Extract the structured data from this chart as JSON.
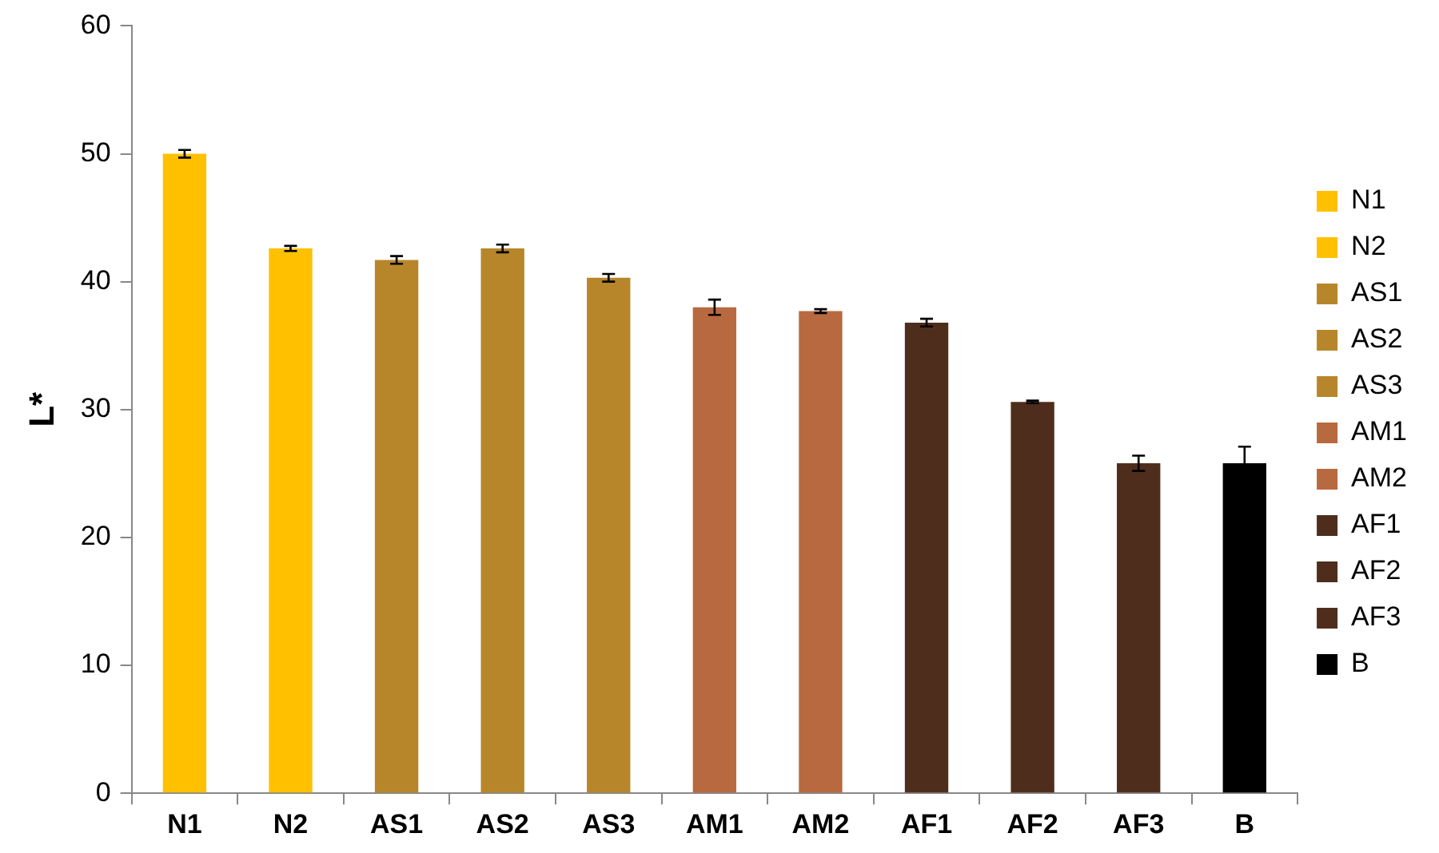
{
  "chart_data": {
    "type": "bar",
    "ylabel": "L*",
    "stacked": true,
    "categories": [
      "N1",
      "N2",
      "AS1",
      "AS2",
      "AS3",
      "AM1",
      "AM2",
      "AF1",
      "AF2",
      "AF3",
      "B"
    ],
    "series": [
      {
        "name": "N1",
        "color": "#ffc000",
        "values": [
          50.0,
          null,
          null,
          null,
          null,
          null,
          null,
          null,
          null,
          null,
          null
        ],
        "errors": [
          0.3,
          null,
          null,
          null,
          null,
          null,
          null,
          null,
          null,
          null,
          null
        ]
      },
      {
        "name": "N2",
        "color": "#ffc000",
        "values": [
          null,
          42.6,
          null,
          null,
          null,
          null,
          null,
          null,
          null,
          null,
          null
        ],
        "errors": [
          null,
          0.2,
          null,
          null,
          null,
          null,
          null,
          null,
          null,
          null,
          null
        ]
      },
      {
        "name": "AS1",
        "color": "#b8862a",
        "values": [
          null,
          null,
          41.7,
          null,
          null,
          null,
          null,
          null,
          null,
          null,
          null
        ],
        "errors": [
          null,
          null,
          0.3,
          null,
          null,
          null,
          null,
          null,
          null,
          null,
          null
        ]
      },
      {
        "name": "AS2",
        "color": "#b8862a",
        "values": [
          null,
          null,
          null,
          42.6,
          null,
          null,
          null,
          null,
          null,
          null,
          null
        ],
        "errors": [
          null,
          null,
          null,
          0.3,
          null,
          null,
          null,
          null,
          null,
          null,
          null
        ]
      },
      {
        "name": "AS3",
        "color": "#b8862a",
        "values": [
          null,
          null,
          null,
          null,
          40.3,
          null,
          null,
          null,
          null,
          null,
          null
        ],
        "errors": [
          null,
          null,
          null,
          null,
          0.3,
          null,
          null,
          null,
          null,
          null,
          null
        ]
      },
      {
        "name": "AM1",
        "color": "#b9693f",
        "values": [
          null,
          null,
          null,
          null,
          null,
          38.0,
          null,
          null,
          null,
          null,
          null
        ],
        "errors": [
          null,
          null,
          null,
          null,
          null,
          0.6,
          null,
          null,
          null,
          null,
          null
        ]
      },
      {
        "name": "AM2",
        "color": "#b9693f",
        "values": [
          null,
          null,
          null,
          null,
          null,
          null,
          37.7,
          null,
          null,
          null,
          null
        ],
        "errors": [
          null,
          null,
          null,
          null,
          null,
          null,
          0.15,
          null,
          null,
          null,
          null
        ]
      },
      {
        "name": "AF1",
        "color": "#4f2d1d",
        "values": [
          null,
          null,
          null,
          null,
          null,
          null,
          null,
          36.8,
          null,
          null,
          null
        ],
        "errors": [
          null,
          null,
          null,
          null,
          null,
          null,
          null,
          0.3,
          null,
          null,
          null
        ]
      },
      {
        "name": "AF2",
        "color": "#4f2d1d",
        "values": [
          null,
          null,
          null,
          null,
          null,
          null,
          null,
          null,
          30.6,
          null,
          null
        ],
        "errors": [
          null,
          null,
          null,
          null,
          null,
          null,
          null,
          null,
          0.1,
          null,
          null
        ]
      },
      {
        "name": "AF3",
        "color": "#4f2d1d",
        "values": [
          null,
          null,
          null,
          null,
          null,
          null,
          null,
          null,
          null,
          25.8,
          null
        ],
        "errors": [
          null,
          null,
          null,
          null,
          null,
          null,
          null,
          null,
          null,
          0.6,
          null
        ]
      },
      {
        "name": "B",
        "color": "#000000",
        "values": [
          null,
          null,
          null,
          null,
          null,
          null,
          null,
          null,
          null,
          null,
          25.8
        ],
        "errors": [
          null,
          null,
          null,
          null,
          null,
          null,
          null,
          null,
          null,
          null,
          1.3
        ]
      }
    ],
    "ylim": [
      0,
      60
    ],
    "yticks": [
      0,
      10,
      20,
      30,
      40,
      50,
      60
    ],
    "grid": false,
    "legend": "right"
  }
}
